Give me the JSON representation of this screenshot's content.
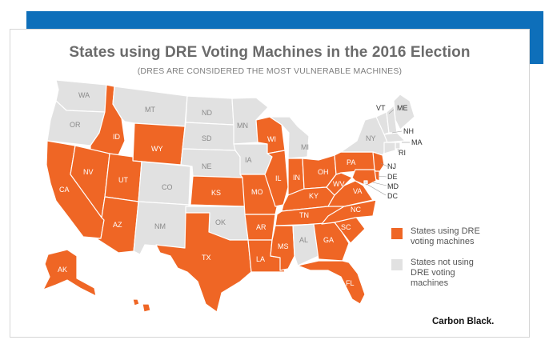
{
  "title": "States using DRE Voting Machines in the 2016 Election",
  "subtitle": "(DRES ARE CONSIDERED THE MOST VULNERABLE MACHINES)",
  "colors": {
    "dre": "#ef6625",
    "non_dre": "#e1e1e1",
    "border": "#ffffff",
    "accent": "#0e6fba"
  },
  "legend": {
    "dre_label": "States using DRE voting machines",
    "non_dre_label": "States not using DRE voting machines"
  },
  "brand": "Carbon Black.",
  "states": [
    {
      "abbr": "WA",
      "dre": false
    },
    {
      "abbr": "OR",
      "dre": false
    },
    {
      "abbr": "CA",
      "dre": true
    },
    {
      "abbr": "ID",
      "dre": true
    },
    {
      "abbr": "NV",
      "dre": true
    },
    {
      "abbr": "MT",
      "dre": false
    },
    {
      "abbr": "WY",
      "dre": true
    },
    {
      "abbr": "UT",
      "dre": true
    },
    {
      "abbr": "AZ",
      "dre": true
    },
    {
      "abbr": "CO",
      "dre": false
    },
    {
      "abbr": "NM",
      "dre": false
    },
    {
      "abbr": "ND",
      "dre": false
    },
    {
      "abbr": "SD",
      "dre": false
    },
    {
      "abbr": "NE",
      "dre": false
    },
    {
      "abbr": "KS",
      "dre": true
    },
    {
      "abbr": "OK",
      "dre": false
    },
    {
      "abbr": "TX",
      "dre": true
    },
    {
      "abbr": "MN",
      "dre": false
    },
    {
      "abbr": "IA",
      "dre": false
    },
    {
      "abbr": "MO",
      "dre": true
    },
    {
      "abbr": "AR",
      "dre": true
    },
    {
      "abbr": "LA",
      "dre": true
    },
    {
      "abbr": "WI",
      "dre": true
    },
    {
      "abbr": "IL",
      "dre": true
    },
    {
      "abbr": "MI",
      "dre": false
    },
    {
      "abbr": "IN",
      "dre": true
    },
    {
      "abbr": "OH",
      "dre": true
    },
    {
      "abbr": "KY",
      "dre": true
    },
    {
      "abbr": "TN",
      "dre": true
    },
    {
      "abbr": "MS",
      "dre": true
    },
    {
      "abbr": "AL",
      "dre": false
    },
    {
      "abbr": "GA",
      "dre": true
    },
    {
      "abbr": "FL",
      "dre": true
    },
    {
      "abbr": "SC",
      "dre": true
    },
    {
      "abbr": "NC",
      "dre": true
    },
    {
      "abbr": "VA",
      "dre": true
    },
    {
      "abbr": "WV",
      "dre": true
    },
    {
      "abbr": "PA",
      "dre": true
    },
    {
      "abbr": "NY",
      "dre": false
    },
    {
      "abbr": "VT",
      "dre": false
    },
    {
      "abbr": "ME",
      "dre": false
    },
    {
      "abbr": "NH",
      "dre": false
    },
    {
      "abbr": "MA",
      "dre": false
    },
    {
      "abbr": "RI",
      "dre": false
    },
    {
      "abbr": "CT",
      "dre": false
    },
    {
      "abbr": "NJ",
      "dre": true
    },
    {
      "abbr": "DE",
      "dre": true
    },
    {
      "abbr": "MD",
      "dre": true
    },
    {
      "abbr": "DC",
      "dre": false
    },
    {
      "abbr": "AK",
      "dre": true
    },
    {
      "abbr": "HI",
      "dre": true
    }
  ]
}
